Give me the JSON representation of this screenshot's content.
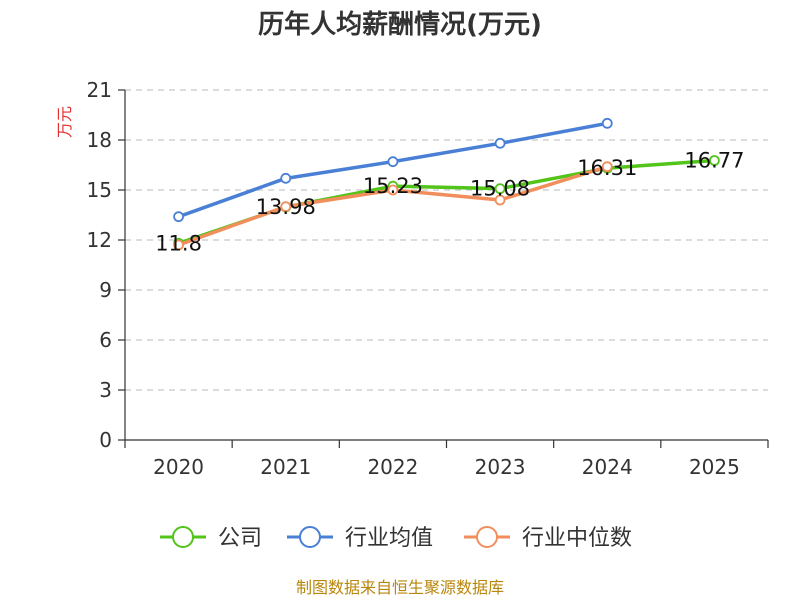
{
  "chart_data": {
    "type": "line",
    "title": "历年人均薪酬情况(万元)",
    "ylabel": "万元",
    "xlabel": "",
    "categories": [
      "2020",
      "2021",
      "2022",
      "2023",
      "2024",
      "2025"
    ],
    "yticks": [
      "0",
      "3",
      "6",
      "9",
      "12",
      "15",
      "18",
      "21"
    ],
    "ylim": [
      0,
      21
    ],
    "grid": true,
    "legend_position": "bottom",
    "series": [
      {
        "name": "公司",
        "color": "#52c41a",
        "values": [
          11.8,
          13.98,
          15.23,
          15.08,
          16.31,
          16.77
        ],
        "labels": [
          "11.8",
          "13.98",
          "15.23",
          "15.08",
          "16.31",
          "16.77"
        ]
      },
      {
        "name": "行业均值",
        "color": "#4a7fd6",
        "values": [
          13.4,
          15.7,
          16.7,
          17.8,
          19.0,
          null
        ]
      },
      {
        "name": "行业中位数",
        "color": "#f28e5b",
        "values": [
          11.7,
          14.0,
          15.0,
          14.4,
          16.4,
          null
        ]
      }
    ],
    "source": "制图数据来自恒生聚源数据库"
  }
}
